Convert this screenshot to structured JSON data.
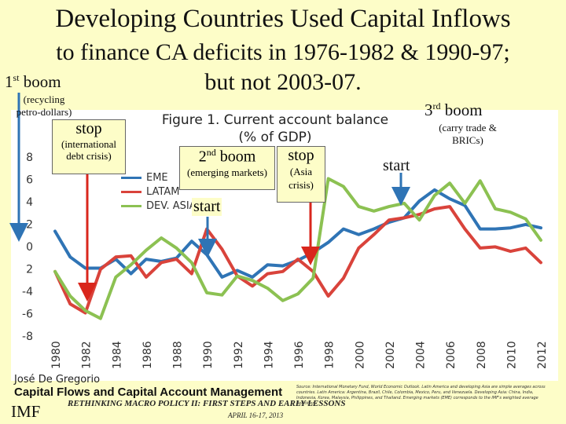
{
  "slide": {
    "title_line1": "Developing Countries Used Capital Inflows",
    "title_line2": "to finance CA deficits in 1976-1982 & 1990-97;",
    "title_line3": "but not 2003-07.",
    "boom1": {
      "ord": "1",
      "sup": "st",
      "word": " boom",
      "note_line1": "(recycling",
      "note_line2": "petro-dollars)"
    },
    "boom3": {
      "ord": "3",
      "sup": "rd",
      "word": " boom",
      "note_line1": "(carry trade &",
      "note_line2": "BRICs)"
    },
    "stop1": {
      "title": "stop",
      "note_line1": "(international",
      "note_line2": "debt crisis)"
    },
    "boom2": {
      "ord": "2",
      "sup": "nd",
      "word": "  boom",
      "note": "(emerging markets)"
    },
    "stop2": {
      "title": "stop",
      "note_line1": "(Asia",
      "note_line2": "crisis)"
    },
    "start1": "start",
    "start2": "start",
    "footer": {
      "author": "José De Gregorio",
      "conference": "Capital Flows and Capital Account Management",
      "subconf": "RETHINKING MACRO POLICY II: FIRST STEPS AND EARLY LESSONS",
      "dates": "APRIL 16-17, 2013",
      "imf": "IMF",
      "source": "Source: International Monetary Fund, World Economic Outlook. Latin America and developing Asia are simple averages across countries. Latin America: Argentina, Brazil, Chile, Colombia, Mexico, Peru, and Venezuela. Developing Asia: China, India, Indonesia, Korea, Malaysia, Philippines, and Thailand. Emerging markets (EME) corresponds to the IMF's weighted average definition."
    },
    "colors": {
      "eme": "#2f74b5",
      "latam": "#d9433b",
      "dev_asia": "#8cc152",
      "arrow_blue": "#2f74b5",
      "arrow_red": "#d9261c",
      "background": "#fdfdc8"
    }
  },
  "chart_data": {
    "type": "line",
    "title_line1": "Figure 1. Current account balance",
    "title_line2": "(% of GDP)",
    "x": [
      1980,
      1981,
      1982,
      1983,
      1984,
      1985,
      1986,
      1987,
      1988,
      1989,
      1990,
      1991,
      1992,
      1993,
      1994,
      1995,
      1996,
      1997,
      1998,
      1999,
      2000,
      2001,
      2002,
      2003,
      2004,
      2005,
      2006,
      2007,
      2008,
      2009,
      2010,
      2011,
      2012
    ],
    "xticks": [
      "1980",
      "1982",
      "1984",
      "1986",
      "1988",
      "1990",
      "1992",
      "1994",
      "1996",
      "1998",
      "2000",
      "2002",
      "2004",
      "2006",
      "2008",
      "2010",
      "2012"
    ],
    "ylim": [
      -8,
      8
    ],
    "yticks": [
      "8",
      "6",
      "4",
      "2",
      "0",
      "2",
      "-4",
      "-6",
      "-8"
    ],
    "grid": false,
    "legend_position": "top-left",
    "series": [
      {
        "name": "EME",
        "color": "#2f74b5",
        "values": [
          1.3,
          -1.0,
          -2.0,
          -2.0,
          -1.2,
          -2.5,
          -1.2,
          -1.4,
          -1.1,
          0.4,
          -0.8,
          -2.8,
          -2.2,
          -2.8,
          -1.7,
          -1.8,
          -1.3,
          -0.6,
          0.3,
          1.5,
          1.0,
          1.5,
          2.1,
          2.5,
          4.0,
          5.0,
          4.2,
          3.6,
          1.5,
          1.5,
          1.6,
          1.9,
          1.6
        ]
      },
      {
        "name": "LATAM",
        "color": "#d9433b",
        "values": [
          -2.3,
          -5.2,
          -6.0,
          -2.1,
          -1.0,
          -0.9,
          -2.8,
          -1.5,
          -1.2,
          -2.5,
          1.5,
          -0.3,
          -2.7,
          -3.6,
          -2.5,
          -2.3,
          -1.2,
          -2.3,
          -4.5,
          -2.9,
          -0.2,
          1.0,
          2.3,
          2.5,
          2.8,
          3.3,
          3.5,
          1.5,
          -0.2,
          -0.1,
          -0.5,
          -0.2,
          -1.5
        ]
      },
      {
        "name": "DEV. ASIA",
        "color": "#8cc152",
        "values": [
          -2.3,
          -4.5,
          -5.8,
          -6.5,
          -2.8,
          -1.7,
          -0.4,
          0.7,
          -0.2,
          -1.5,
          -4.2,
          -4.4,
          -2.7,
          -3.1,
          -3.8,
          -4.9,
          -4.3,
          -2.9,
          6.0,
          5.3,
          3.5,
          3.1,
          3.5,
          3.8,
          2.3,
          4.5,
          5.6,
          3.8,
          5.8,
          3.3,
          3.0,
          2.4,
          0.5
        ]
      }
    ]
  }
}
